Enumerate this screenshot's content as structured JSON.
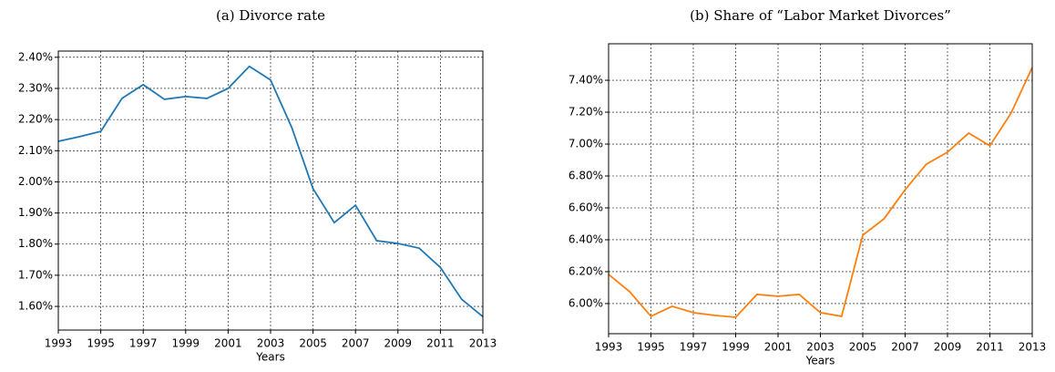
{
  "chart_data": [
    {
      "type": "line",
      "title": "(a) Divorce rate",
      "x_label": "Years",
      "x": [
        1993,
        1994,
        1995,
        1996,
        1997,
        1998,
        1999,
        2000,
        2001,
        2002,
        2003,
        2004,
        2005,
        2006,
        2007,
        2008,
        2009,
        2010,
        2011,
        2012,
        2013
      ],
      "series": [
        {
          "color": "#1f77b4",
          "values": [
            2.13,
            2.145,
            2.162,
            2.268,
            2.312,
            2.265,
            2.274,
            2.268,
            2.3,
            2.371,
            2.327,
            2.174,
            1.978,
            1.869,
            1.925,
            1.811,
            1.802,
            1.787,
            1.725,
            1.623,
            1.567
          ]
        }
      ],
      "xlim": [
        1993,
        2013
      ],
      "xticks": [
        1993,
        1995,
        1997,
        1999,
        2001,
        2003,
        2005,
        2007,
        2009,
        2011,
        2013
      ],
      "ylim": [
        1.524,
        2.42
      ],
      "yticks": [
        {
          "value": 1.6,
          "label": "1.60%"
        },
        {
          "value": 1.7,
          "label": "1.70%"
        },
        {
          "value": 1.8,
          "label": "1.80%"
        },
        {
          "value": 1.9,
          "label": "1.90%"
        },
        {
          "value": 2.0,
          "label": "2.00%"
        },
        {
          "value": 2.1,
          "label": "2.10%"
        },
        {
          "value": 2.2,
          "label": "2.20%"
        },
        {
          "value": 2.3,
          "label": "2.30%"
        },
        {
          "value": 2.4,
          "label": "2.40%"
        }
      ],
      "grid": true
    },
    {
      "type": "line",
      "title": "(b) Share of “Labor Market Divorces”",
      "x_label": "Years",
      "x": [
        1993,
        1994,
        1995,
        1996,
        1997,
        1998,
        1999,
        2000,
        2001,
        2002,
        2003,
        2004,
        2005,
        2006,
        2007,
        2008,
        2009,
        2010,
        2011,
        2012,
        2013
      ],
      "series": [
        {
          "color": "#ff7f0e",
          "values": [
            6.183,
            6.074,
            5.92,
            5.983,
            5.943,
            5.926,
            5.914,
            6.057,
            6.046,
            6.057,
            5.943,
            5.92,
            6.429,
            6.531,
            6.714,
            6.874,
            6.949,
            7.069,
            6.989,
            7.194,
            7.48
          ]
        }
      ],
      "xlim": [
        1993,
        2013
      ],
      "xticks": [
        1993,
        1995,
        1997,
        1999,
        2001,
        2003,
        2005,
        2007,
        2009,
        2011,
        2013
      ],
      "ylim": [
        5.811,
        7.629
      ],
      "yticks": [
        {
          "value": 6.0,
          "label": "6.00%"
        },
        {
          "value": 6.2,
          "label": "6.20%"
        },
        {
          "value": 6.4,
          "label": "6.40%"
        },
        {
          "value": 6.6,
          "label": "6.60%"
        },
        {
          "value": 6.8,
          "label": "6.80%"
        },
        {
          "value": 7.0,
          "label": "7.00%"
        },
        {
          "value": 7.2,
          "label": "7.20%"
        },
        {
          "value": 7.4,
          "label": "7.40%"
        }
      ],
      "grid": true
    }
  ]
}
